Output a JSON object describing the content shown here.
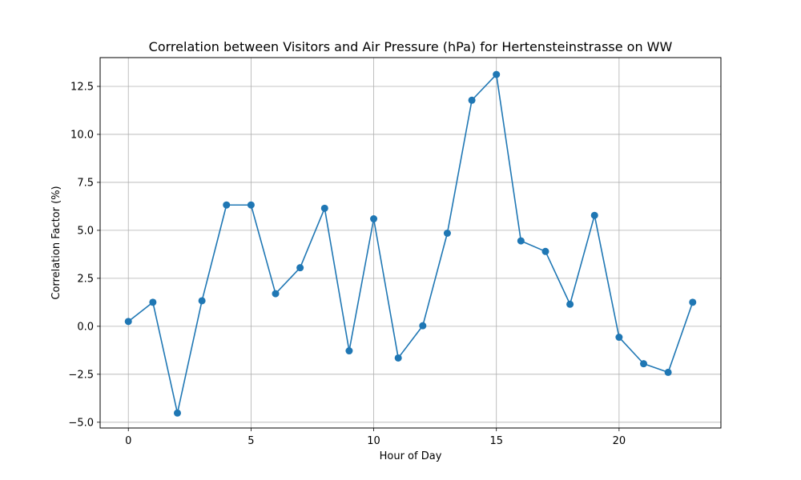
{
  "chart_data": {
    "type": "line",
    "title": "Correlation between Visitors and Air Pressure (hPa) for Hertensteinstrasse on WW",
    "xlabel": "Hour of Day",
    "ylabel": "Correlation Factor (%)",
    "xlim": [
      -1.15,
      24.15
    ],
    "ylim": [
      -5.3,
      14.0
    ],
    "xticks": [
      0,
      5,
      10,
      15,
      20
    ],
    "xtick_labels": [
      "0",
      "5",
      "10",
      "15",
      "20"
    ],
    "yticks": [
      -5.0,
      -2.5,
      0.0,
      2.5,
      5.0,
      7.5,
      10.0,
      12.5
    ],
    "ytick_labels": [
      "−5.0",
      "−2.5",
      "0.0",
      "2.5",
      "5.0",
      "7.5",
      "10.0",
      "12.5"
    ],
    "grid": true,
    "color": "#1f77b4",
    "series": [
      {
        "x": [
          0,
          1,
          2,
          3,
          4,
          5,
          6,
          7,
          8,
          9,
          10,
          11,
          12,
          13,
          14,
          15,
          16,
          17,
          18,
          19,
          20,
          21,
          22,
          23
        ],
        "values": [
          0.25,
          1.25,
          -4.52,
          1.33,
          6.32,
          6.32,
          1.7,
          3.05,
          6.15,
          -1.28,
          5.6,
          -1.65,
          0.03,
          4.85,
          11.78,
          13.12,
          4.45,
          3.9,
          1.15,
          5.78,
          -0.57,
          -1.95,
          -2.4,
          1.25
        ]
      }
    ]
  }
}
